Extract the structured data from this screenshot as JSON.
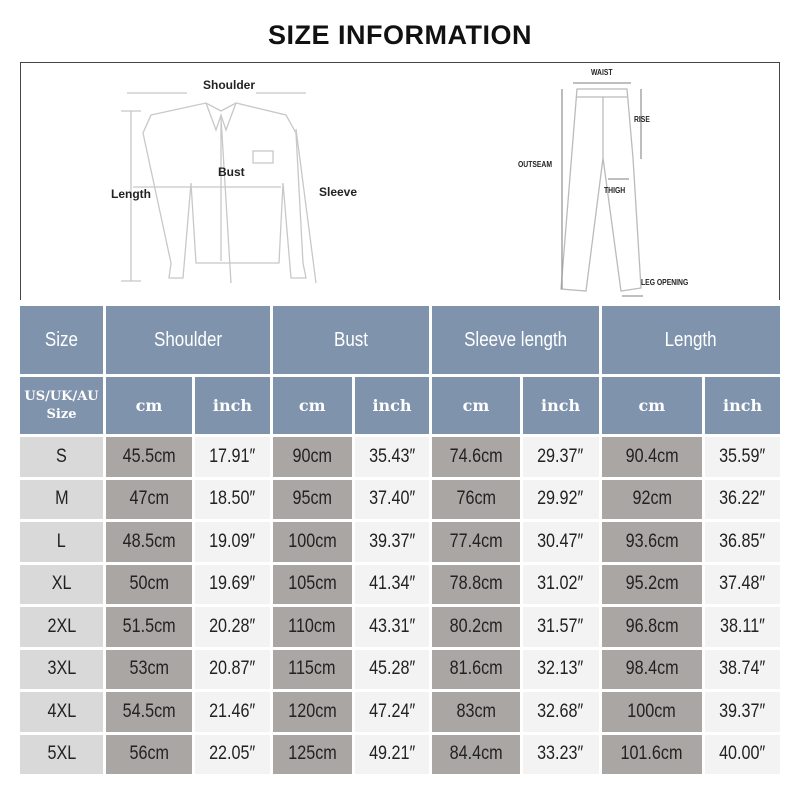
{
  "title": "SIZE INFORMATION",
  "shirt_labels": {
    "shoulder": "Shoulder",
    "bust": "Bust",
    "length": "Length",
    "sleeve": "Sleeve"
  },
  "pants_labels": {
    "waist": "WAIST",
    "rise": "RISE",
    "outseam": "OUTSEAM",
    "thigh": "THIGH",
    "leg_opening": "LEG OPENING"
  },
  "table": {
    "headers": [
      "Size",
      "Shoulder",
      "Bust",
      "Sleeve length",
      "Length"
    ],
    "subheaders": {
      "size": "US/UK/AU Size",
      "cm": "cm",
      "inch": "inch"
    },
    "rows": [
      {
        "size": "S",
        "values": [
          "45.5cm",
          "17.91″",
          "90cm",
          "35.43″",
          "74.6cm",
          "29.37″",
          "90.4cm",
          "35.59″"
        ]
      },
      {
        "size": "M",
        "values": [
          "47cm",
          "18.50″",
          "95cm",
          "37.40″",
          "76cm",
          "29.92″",
          "92cm",
          "36.22″"
        ]
      },
      {
        "size": "L",
        "values": [
          "48.5cm",
          "19.09″",
          "100cm",
          "39.37″",
          "77.4cm",
          "30.47″",
          "93.6cm",
          "36.85″"
        ]
      },
      {
        "size": "XL",
        "values": [
          "50cm",
          "19.69″",
          "105cm",
          "41.34″",
          "78.8cm",
          "31.02″",
          "95.2cm",
          "37.48″"
        ]
      },
      {
        "size": "2XL",
        "values": [
          "51.5cm",
          "20.28″",
          "110cm",
          "43.31″",
          "80.2cm",
          "31.57″",
          "96.8cm",
          "38.11″"
        ]
      },
      {
        "size": "3XL",
        "values": [
          "53cm",
          "20.87″",
          "115cm",
          "45.28″",
          "81.6cm",
          "32.13″",
          "98.4cm",
          "38.74″"
        ]
      },
      {
        "size": "4XL",
        "values": [
          "54.5cm",
          "21.46″",
          "120cm",
          "47.24″",
          "83cm",
          "32.68″",
          "100cm",
          "39.37″"
        ]
      },
      {
        "size": "5XL",
        "values": [
          "56cm",
          "22.05″",
          "125cm",
          "49.21″",
          "84.4cm",
          "33.23″",
          "101.6cm",
          "40.00″"
        ]
      }
    ]
  },
  "colors": {
    "header": "#7f93ad",
    "size_cell": "#d9d9d9",
    "cm_cell": "#aaa6a4",
    "inch_cell": "#f3f3f3"
  }
}
